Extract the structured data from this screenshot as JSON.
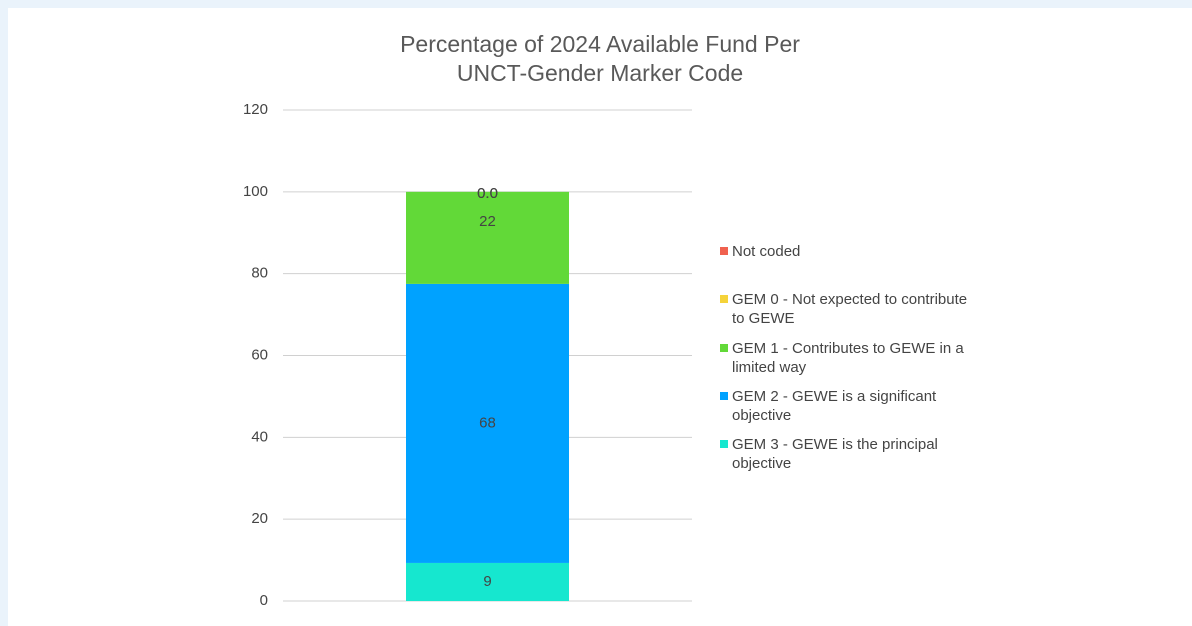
{
  "chart_data": {
    "type": "stacked_bar",
    "title": "Percentage of 2024 Available Fund Per UNCT-Gender Marker Code",
    "categories": [
      null
    ],
    "series": [
      {
        "name": "GEM 3 - GEWE is the principal objective",
        "color": "#16e7cf",
        "values": [
          9.3
        ],
        "value_labels": [
          "9"
        ]
      },
      {
        "name": "GEM 2 - GEWE is a significant objective",
        "color": "#00a2ff",
        "values": [
          68.2
        ],
        "value_labels": [
          "68"
        ]
      },
      {
        "name": "GEM 1 - Contributes to GEWE in a limited way",
        "color": "#62d938",
        "values": [
          22.5
        ],
        "value_labels": [
          "22"
        ]
      },
      {
        "name": "GEM 0 - Not expected to contribute to GEWE",
        "color": "#f5d33a",
        "values": [
          0
        ],
        "value_labels": [
          "0.0"
        ]
      },
      {
        "name": "Not coded",
        "color": "#f0614f",
        "values": [
          0
        ],
        "value_labels": [
          "0.0"
        ]
      }
    ],
    "ylim": [
      0,
      120
    ],
    "yticks": [
      0,
      20,
      40,
      60,
      80,
      100,
      120
    ],
    "grid": true,
    "legend": "right"
  }
}
